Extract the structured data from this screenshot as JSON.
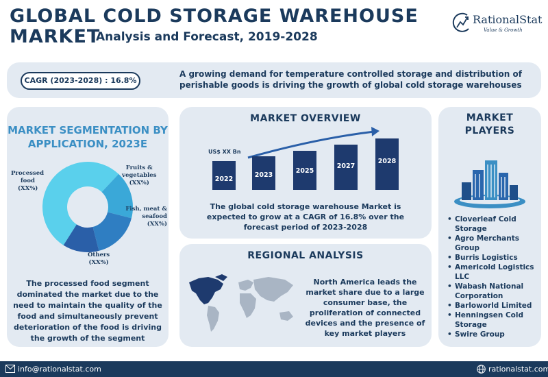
{
  "header": {
    "title_line1": "GLOBAL COLD STORAGE WAREHOUSE",
    "title_line2": "MARKET",
    "subtitle": "Analysis and Forecast, 2019-2028",
    "logo_name": "RationalStat",
    "logo_tagline": "Value & Growth"
  },
  "cagr": {
    "label": "CAGR (2023-2028) : 16.8%",
    "description": "A growing demand for temperature controlled storage and distribution of perishable goods is driving the growth of global cold storage warehouses"
  },
  "segmentation": {
    "title": "MARKET SEGMENTATION BY APPLICATION, 2023E",
    "description": "The processed food segment dominated the market due to the need to maintain the quality of the food and simultaneously prevent deterioration of the food is driving the growth of the segment",
    "slices": [
      {
        "label_line1": "Processed",
        "label_line2": "food",
        "label_line3": "(XX%)",
        "share": 0.53,
        "color": "#5ad0ec"
      },
      {
        "label_line1": "Fruits &",
        "label_line2": "vegetables",
        "label_line3": "(XX%)",
        "share": 0.17,
        "color": "#3aa8d8"
      },
      {
        "label_line1": "Fish, meat &",
        "label_line2": "seafood",
        "label_line3": "(XX%)",
        "share": 0.17,
        "color": "#2f7ec2"
      },
      {
        "label_line1": "Others",
        "label_line2": "(XX%)",
        "share": 0.13,
        "color": "#2a5fa8"
      }
    ]
  },
  "overview": {
    "title": "MARKET OVERVIEW",
    "unit_label": "US$ XX Bn",
    "years": [
      "2022",
      "2023",
      "2025",
      "2027",
      "2028"
    ],
    "description": "The global cold storage warehouse Market is expected to grow at a CAGR of 16.8% over the forecast period of 2023-2028"
  },
  "regional": {
    "title": "REGIONAL ANALYSIS",
    "description": "North America leads the market share due to a large consumer base, the proliferation of connected devices and the presence of key market players"
  },
  "players": {
    "title_line1": "MARKET",
    "title_line2": "PLAYERS",
    "list": [
      "Cloverleaf Cold Storage",
      "Agro Merchants Group",
      "Burris Logistics",
      "Americold Logistics LLC",
      "Wabash National Corporation",
      "Barloworld Limited",
      "Henningsen Cold Storage",
      "Swire Group"
    ]
  },
  "footer": {
    "email": "info@rationalstat.com",
    "website": "rationalstat.com"
  },
  "colors": {
    "navy": "#1b3a5c",
    "accent_blue": "#3b8fc4",
    "panel_bg": "#e3eaf2"
  }
}
